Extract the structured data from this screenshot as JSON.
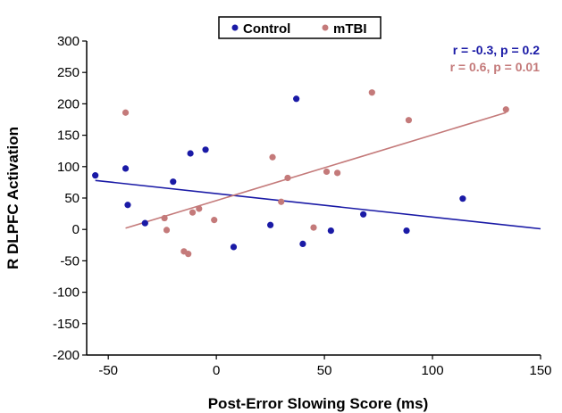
{
  "chart_data": {
    "type": "scatter",
    "title": "",
    "xlabel": "Post-Error Slowing Score (ms)",
    "ylabel": "R DLPFC Activation",
    "xlim": [
      -60,
      150
    ],
    "ylim": [
      -200,
      300
    ],
    "xticks": [
      -50,
      0,
      50,
      100,
      150
    ],
    "yticks": [
      -200,
      -150,
      -100,
      -50,
      0,
      50,
      100,
      150,
      200,
      250,
      300
    ],
    "xtick_labels": [
      "-50",
      "0",
      "50",
      "100",
      "150"
    ],
    "ytick_labels": [
      "-200",
      "-150",
      "-100",
      "-50",
      "0",
      "50",
      "100",
      "150",
      "200",
      "250",
      "300"
    ],
    "grid": false,
    "legend_position": "top-center",
    "series": [
      {
        "name": "Control",
        "color": "#1a1aa6",
        "points": [
          {
            "x": -56,
            "y": 86
          },
          {
            "x": -42,
            "y": 97
          },
          {
            "x": -41,
            "y": 39
          },
          {
            "x": -33,
            "y": 10
          },
          {
            "x": -20,
            "y": 76
          },
          {
            "x": -12,
            "y": 121
          },
          {
            "x": -5,
            "y": 127
          },
          {
            "x": 8,
            "y": -28
          },
          {
            "x": 25,
            "y": 7
          },
          {
            "x": 37,
            "y": 208
          },
          {
            "x": 40,
            "y": -23
          },
          {
            "x": 53,
            "y": -2
          },
          {
            "x": 68,
            "y": 24
          },
          {
            "x": 88,
            "y": -2
          },
          {
            "x": 114,
            "y": 49
          }
        ],
        "fit": {
          "x": [
            -56,
            150
          ],
          "y": [
            78,
            1
          ]
        },
        "stat_label": "r = -0.3, p = 0.2"
      },
      {
        "name": "mTBI",
        "color": "#c47a7a",
        "points": [
          {
            "x": -42,
            "y": 186
          },
          {
            "x": -24,
            "y": 18
          },
          {
            "x": -23,
            "y": -1
          },
          {
            "x": -15,
            "y": -35
          },
          {
            "x": -13,
            "y": -39
          },
          {
            "x": -11,
            "y": 27
          },
          {
            "x": -8,
            "y": 33
          },
          {
            "x": -1,
            "y": 15
          },
          {
            "x": 26,
            "y": 115
          },
          {
            "x": 30,
            "y": 44
          },
          {
            "x": 33,
            "y": 82
          },
          {
            "x": 45,
            "y": 3
          },
          {
            "x": 51,
            "y": 92
          },
          {
            "x": 56,
            "y": 90
          },
          {
            "x": 72,
            "y": 218
          },
          {
            "x": 89,
            "y": 174
          },
          {
            "x": 134,
            "y": 191
          }
        ],
        "fit": {
          "x": [
            -42,
            134
          ],
          "y": [
            2,
            186
          ]
        },
        "stat_label": "r = 0.6, p = 0.01"
      }
    ]
  }
}
